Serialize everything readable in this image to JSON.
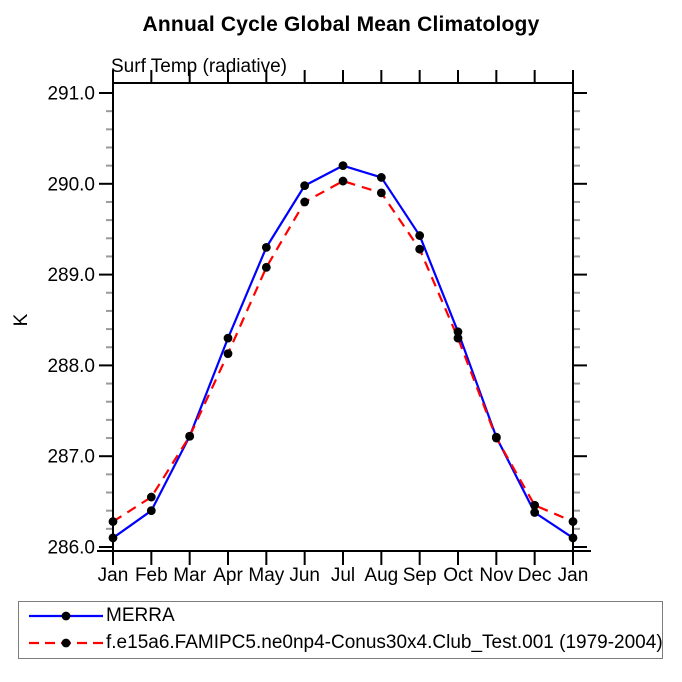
{
  "chart_data": {
    "type": "line",
    "title": "Annual Cycle Global Mean Climatology",
    "subtitle": "Surf Temp (radiative)",
    "xlabel": "",
    "ylabel": "K",
    "categories": [
      "Jan",
      "Feb",
      "Mar",
      "Apr",
      "May",
      "Jun",
      "Jul",
      "Aug",
      "Sep",
      "Oct",
      "Nov",
      "Dec",
      "Jan"
    ],
    "ylim": [
      285.95,
      291.1
    ],
    "y_major_ticks": [
      286.0,
      287.0,
      288.0,
      289.0,
      290.0,
      291.0
    ],
    "y_tick_labels": [
      "286.0",
      "287.0",
      "288.0",
      "289.0",
      "290.0",
      "291.0"
    ],
    "y_minor_step": 0.2,
    "grid": false,
    "legend_position": "bottom-left",
    "axis_color": "#000000",
    "minor_tick_color": "#9b9b9b",
    "marker_color": "#000000",
    "series": [
      {
        "name": "MERRA",
        "color": "#0000ff",
        "style": "solid",
        "marker": "filled-circle",
        "values": [
          286.1,
          286.4,
          287.22,
          288.3,
          289.3,
          289.98,
          290.2,
          290.07,
          289.43,
          288.37,
          287.21,
          286.38,
          286.1
        ]
      },
      {
        "name": "f.e15a6.FAMIPC5.ne0np4-Conus30x4.Club_Test.001 (1979-2004)",
        "color": "#ff0000",
        "style": "dashed",
        "marker": "filled-circle",
        "values": [
          286.28,
          286.55,
          287.22,
          288.13,
          289.08,
          289.8,
          290.03,
          289.9,
          289.28,
          288.3,
          287.2,
          286.46,
          286.28
        ]
      }
    ]
  }
}
